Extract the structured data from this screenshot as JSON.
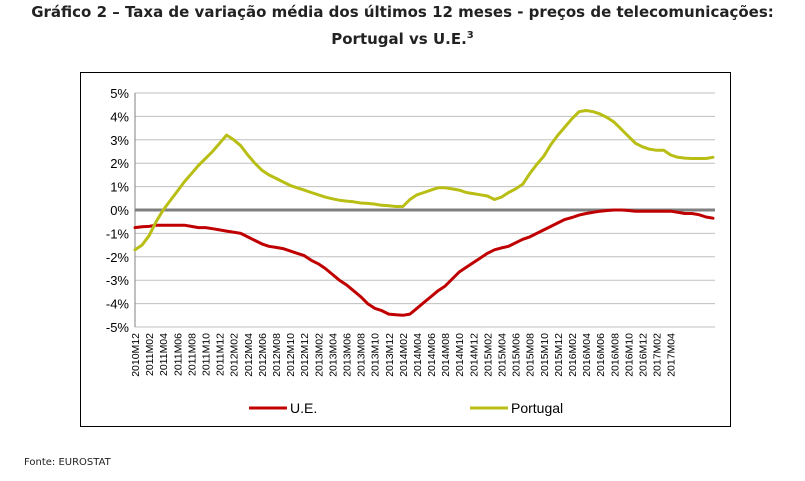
{
  "title": {
    "line1": "Gráfico 2 – Taxa de variação média dos últimos 12 meses - preços de telecomunicações:",
    "line2": "Portugal vs U.E.",
    "footnote": "3"
  },
  "source": "Fonte: EUROSTAT",
  "chart_data": {
    "type": "line",
    "title": "Gráfico 2 – Taxa de variação média dos últimos 12 meses - preços de telecomunicações: Portugal vs U.E.",
    "xlabel": "",
    "ylabel": "",
    "ylim": [
      -5,
      5
    ],
    "yticks": [
      5,
      4,
      3,
      2,
      1,
      0,
      -1,
      -2,
      -3,
      -4,
      -5
    ],
    "ytick_labels": [
      "5%",
      "4%",
      "3%",
      "2%",
      "1%",
      "0%",
      "-1%",
      "-2%",
      "-3%",
      "-4%",
      "-5%"
    ],
    "grid": true,
    "legend_position": "bottom",
    "x_tick_labels": [
      "2010M12",
      "2011M02",
      "2011M04",
      "2011M06",
      "2011M08",
      "2011M10",
      "2011M12",
      "2012M02",
      "2012M04",
      "2012M06",
      "2012M08",
      "2012M10",
      "2012M12",
      "2013M02",
      "2013M04",
      "2013M06",
      "2013M08",
      "2013M10",
      "2013M12",
      "2014M02",
      "2014M04",
      "2014M06",
      "2014M08",
      "2014M10",
      "2014M12",
      "2015M02",
      "2015M04",
      "2015M06",
      "2015M08",
      "2015M10",
      "2015M12",
      "2016M02",
      "2016M04",
      "2016M06",
      "2016M08",
      "2016M10",
      "2016M12",
      "2017M02",
      "2017M04"
    ],
    "colors": {
      "ue": "#c00000",
      "portugal": "#b8be14",
      "zero_line": "#7f7f7f",
      "grid": "#bfbfbf"
    },
    "series": [
      {
        "name": "U.E.",
        "key": "ue",
        "values": [
          -0.75,
          -0.72,
          -0.7,
          -0.65,
          -0.65,
          -0.65,
          -0.65,
          -0.65,
          -0.7,
          -0.75,
          -0.75,
          -0.8,
          -0.85,
          -0.9,
          -0.95,
          -1.0,
          -1.15,
          -1.3,
          -1.45,
          -1.55,
          -1.6,
          -1.65,
          -1.75,
          -1.85,
          -1.95,
          -2.15,
          -2.3,
          -2.5,
          -2.75,
          -3.0,
          -3.2,
          -3.45,
          -3.7,
          -4.0,
          -4.2,
          -4.3,
          -4.45,
          -4.48,
          -4.5,
          -4.45,
          -4.2,
          -3.95,
          -3.7,
          -3.45,
          -3.25,
          -2.95,
          -2.65,
          -2.45,
          -2.25,
          -2.05,
          -1.85,
          -1.7,
          -1.62,
          -1.55,
          -1.4,
          -1.25,
          -1.15,
          -1.0,
          -0.85,
          -0.7,
          -0.55,
          -0.4,
          -0.32,
          -0.22,
          -0.15,
          -0.1,
          -0.05,
          -0.02,
          0.0,
          0.0,
          -0.02,
          -0.05,
          -0.05,
          -0.05,
          -0.05,
          -0.05,
          -0.05,
          -0.1,
          -0.15,
          -0.15,
          -0.2,
          -0.3,
          -0.35
        ]
      },
      {
        "name": "Portugal",
        "key": "portugal",
        "values": [
          -1.7,
          -1.5,
          -1.1,
          -0.5,
          0.0,
          0.4,
          0.8,
          1.2,
          1.55,
          1.9,
          2.2,
          2.5,
          2.85,
          3.2,
          3.0,
          2.75,
          2.35,
          2.0,
          1.7,
          1.5,
          1.35,
          1.2,
          1.05,
          0.95,
          0.85,
          0.75,
          0.65,
          0.55,
          0.48,
          0.42,
          0.38,
          0.35,
          0.3,
          0.28,
          0.25,
          0.2,
          0.18,
          0.15,
          0.15,
          0.45,
          0.65,
          0.75,
          0.85,
          0.95,
          0.95,
          0.9,
          0.85,
          0.75,
          0.7,
          0.65,
          0.6,
          0.45,
          0.55,
          0.75,
          0.9,
          1.1,
          1.55,
          1.95,
          2.3,
          2.8,
          3.2,
          3.55,
          3.9,
          4.2,
          4.25,
          4.2,
          4.1,
          3.95,
          3.75,
          3.45,
          3.15,
          2.85,
          2.7,
          2.6,
          2.55,
          2.55,
          2.35,
          2.25,
          2.22,
          2.2,
          2.2,
          2.2,
          2.25
        ]
      }
    ]
  }
}
